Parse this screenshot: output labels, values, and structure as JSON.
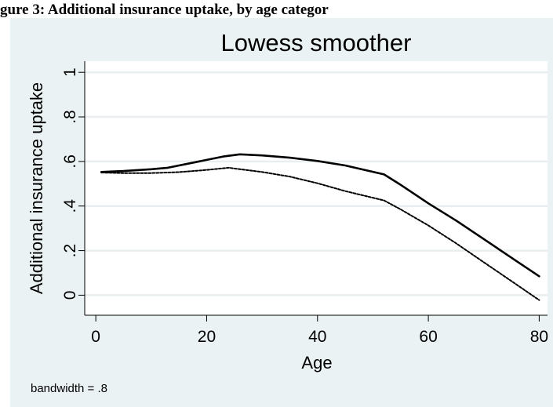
{
  "caption": "gure 3: Additional insurance uptake, by age categor",
  "chart_data": {
    "type": "line",
    "title": "Lowess smoother",
    "xlabel": "Age",
    "ylabel": "Additional insurance uptake",
    "xlim": [
      -2,
      81.5
    ],
    "ylim": [
      -0.09,
      1.05
    ],
    "xticks": [
      0,
      20,
      40,
      60,
      80
    ],
    "yticks": [
      0,
      0.2,
      0.4,
      0.6,
      0.8,
      1
    ],
    "xtick_labels": [
      "0",
      "20",
      "40",
      "60",
      "80"
    ],
    "ytick_labels": [
      "0",
      ".2",
      ".4",
      ".6",
      ".8",
      "1"
    ],
    "grid": true,
    "note": "bandwidth = .8",
    "series": [
      {
        "style": "solid",
        "x": [
          1,
          5,
          10,
          13,
          17,
          20,
          23,
          26,
          30,
          35,
          40,
          45,
          52,
          55,
          60,
          65,
          70,
          75,
          80
        ],
        "y": [
          0.553,
          0.557,
          0.565,
          0.572,
          0.592,
          0.607,
          0.622,
          0.632,
          0.627,
          0.617,
          0.602,
          0.582,
          0.542,
          0.495,
          0.412,
          0.335,
          0.252,
          0.168,
          0.085
        ]
      },
      {
        "style": "dashed",
        "x": [
          1,
          5,
          10,
          15,
          20,
          24,
          27,
          30,
          35,
          40,
          45,
          52,
          55,
          60,
          65,
          70,
          75,
          80
        ],
        "y": [
          0.55,
          0.548,
          0.548,
          0.552,
          0.562,
          0.572,
          0.562,
          0.553,
          0.532,
          0.502,
          0.467,
          0.425,
          0.385,
          0.313,
          0.233,
          0.148,
          0.063,
          -0.022
        ]
      }
    ]
  }
}
